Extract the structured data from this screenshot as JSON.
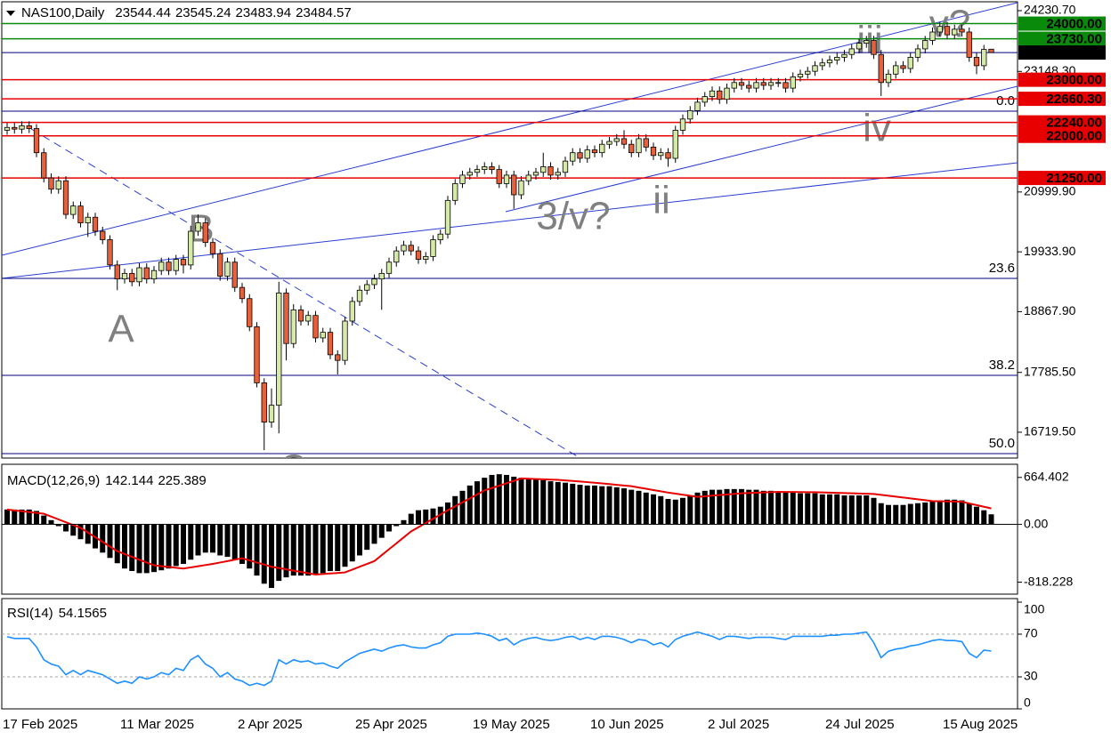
{
  "chart_data": [
    {
      "type": "candlestick",
      "symbol": "NAS100,Daily",
      "categories": [
        "17 Feb 2025",
        null,
        null,
        null,
        null,
        null,
        null,
        null,
        null,
        null,
        null,
        null,
        null,
        null,
        null,
        null,
        "11 Mar 2025",
        null,
        null,
        null,
        null,
        null,
        null,
        null,
        null,
        null,
        null,
        null,
        null,
        null,
        null,
        null,
        "2 Apr 2025",
        null,
        null,
        null,
        null,
        null,
        null,
        null,
        null,
        null,
        null,
        null,
        null,
        null,
        null,
        null,
        "25 Apr 2025",
        null,
        null,
        null,
        null,
        null,
        null,
        null,
        null,
        null,
        null,
        null,
        null,
        null,
        null,
        null,
        "19 May 2025",
        null,
        null,
        null,
        null,
        null,
        null,
        null,
        null,
        null,
        null,
        null,
        null,
        null,
        null,
        null,
        "10 Jun 2025",
        null,
        null,
        null,
        null,
        null,
        null,
        null,
        null,
        null,
        null,
        null,
        null,
        null,
        null,
        null,
        "2 Jul 2025",
        null,
        null,
        null,
        null,
        null,
        null,
        null,
        null,
        null,
        null,
        null,
        null,
        null,
        null,
        null,
        "24 Jul 2025",
        null,
        null,
        null,
        null,
        null,
        null,
        null,
        null,
        null,
        null,
        null,
        null,
        null,
        null,
        null,
        "15 Aug 2025",
        null,
        null,
        null,
        null,
        null,
        null
      ],
      "open": [
        22100,
        22150,
        22120,
        22180,
        22130,
        21700,
        21250,
        21050,
        21200,
        20600,
        20750,
        20450,
        20550,
        20300,
        20150,
        19700,
        19450,
        19550,
        19400,
        19650,
        19450,
        19600,
        19750,
        19600,
        19800,
        19700,
        20300,
        20450,
        20100,
        19900,
        19500,
        19750,
        19300,
        19100,
        18600,
        17600,
        16900,
        17200,
        19200,
        18300,
        18900,
        18700,
        18800,
        18400,
        18500,
        18100,
        18000,
        18700,
        19050,
        19250,
        19350,
        19450,
        19550,
        19750,
        19950,
        20050,
        19950,
        19800,
        19850,
        20150,
        20250,
        20850,
        21150,
        21300,
        21350,
        21400,
        21450,
        21400,
        21150,
        21300,
        20950,
        21200,
        21300,
        21350,
        21450,
        21300,
        21350,
        21550,
        21700,
        21600,
        21750,
        21700,
        21850,
        21900,
        21950,
        21850,
        21700,
        21950,
        21800,
        21650,
        21700,
        21600,
        22100,
        22300,
        22450,
        22600,
        22700,
        22800,
        22650,
        22850,
        22950,
        22900,
        22850,
        22950,
        22900,
        22950,
        22950,
        22850,
        23050,
        23100,
        23150,
        23250,
        23300,
        23350,
        23400,
        23450,
        23550,
        23650,
        23700,
        23450,
        22950,
        23100,
        23250,
        23200,
        23400,
        23550,
        23700,
        23850,
        23950,
        23800,
        23900,
        23850,
        23400,
        23250,
        23544.44
      ],
      "high": [
        22230,
        22230,
        22260,
        22260,
        22210,
        21780,
        21330,
        21280,
        21280,
        20830,
        20830,
        20630,
        20630,
        20380,
        20230,
        19780,
        19630,
        19630,
        19730,
        19730,
        19680,
        19830,
        19830,
        19880,
        19880,
        20400,
        20600,
        20530,
        20180,
        19980,
        19830,
        19830,
        19380,
        19180,
        18680,
        17680,
        17500,
        19400,
        19280,
        19000,
        18980,
        18880,
        18880,
        18580,
        18580,
        18180,
        18780,
        19130,
        19330,
        19430,
        19530,
        19630,
        19830,
        20030,
        20130,
        20130,
        20030,
        19930,
        20230,
        20330,
        20930,
        21230,
        21380,
        21430,
        21480,
        21530,
        21530,
        21480,
        21380,
        21380,
        21280,
        21380,
        21430,
        21700,
        21530,
        21430,
        21630,
        21780,
        21780,
        21830,
        21830,
        21930,
        21980,
        22030,
        22100,
        21930,
        22030,
        22030,
        21880,
        21780,
        21780,
        22180,
        22380,
        22530,
        22680,
        22780,
        22880,
        22880,
        22930,
        23030,
        23030,
        22980,
        23030,
        23030,
        23030,
        23030,
        23030,
        23130,
        23180,
        23230,
        23330,
        23380,
        23430,
        23480,
        23530,
        23630,
        23730,
        23780,
        23780,
        23530,
        23180,
        23330,
        23330,
        23480,
        23630,
        23780,
        23930,
        24030,
        24030,
        23980,
        23980,
        23930,
        23480,
        23620,
        23545.24
      ],
      "low": [
        22020,
        22040,
        22040,
        22050,
        21620,
        21170,
        20970,
        20970,
        20520,
        20520,
        20370,
        20200,
        20220,
        20070,
        19620,
        19250,
        19370,
        19320,
        19320,
        19370,
        19370,
        19520,
        19520,
        19520,
        19550,
        19620,
        20220,
        20020,
        19820,
        19420,
        19420,
        19220,
        19020,
        18520,
        17520,
        16400,
        16800,
        16700,
        18000,
        18220,
        18620,
        18620,
        18320,
        18320,
        18020,
        17750,
        17920,
        18620,
        18970,
        19170,
        19270,
        18900,
        19470,
        19670,
        19870,
        19870,
        19720,
        19720,
        19770,
        20070,
        20170,
        20770,
        21070,
        21220,
        21270,
        21320,
        21320,
        21070,
        21070,
        20700,
        20870,
        21120,
        21220,
        21270,
        21220,
        21220,
        21270,
        21470,
        21520,
        21520,
        21620,
        21620,
        21770,
        21820,
        21770,
        21620,
        21620,
        21720,
        21570,
        21570,
        21450,
        21520,
        22020,
        22220,
        22370,
        22520,
        22620,
        22570,
        22570,
        22770,
        22820,
        22770,
        22770,
        22820,
        22820,
        22870,
        22770,
        22770,
        22970,
        23020,
        23070,
        23170,
        23220,
        23270,
        23320,
        23370,
        23470,
        23570,
        23370,
        22710,
        22870,
        23020,
        23120,
        23120,
        23320,
        23470,
        23620,
        23770,
        23720,
        23720,
        23770,
        23320,
        23100,
        23170,
        23483.94
      ],
      "close": [
        22150,
        22120,
        22180,
        22130,
        21700,
        21250,
        21050,
        21200,
        20600,
        20750,
        20450,
        20550,
        20300,
        20150,
        19700,
        19450,
        19550,
        19400,
        19650,
        19450,
        19600,
        19750,
        19600,
        19800,
        19700,
        20300,
        20450,
        20100,
        19900,
        19500,
        19750,
        19300,
        19100,
        18600,
        17600,
        16900,
        17200,
        19200,
        18300,
        18900,
        18700,
        18800,
        18400,
        18500,
        18100,
        18000,
        18700,
        19050,
        19250,
        19350,
        19450,
        19550,
        19750,
        19950,
        20050,
        19950,
        19800,
        19850,
        20150,
        20250,
        20850,
        21150,
        21300,
        21350,
        21400,
        21450,
        21400,
        21150,
        21300,
        20950,
        21200,
        21300,
        21350,
        21450,
        21300,
        21350,
        21550,
        21700,
        21600,
        21750,
        21700,
        21850,
        21900,
        21950,
        21850,
        21700,
        21950,
        21800,
        21650,
        21700,
        21600,
        22100,
        22300,
        22450,
        22600,
        22700,
        22800,
        22650,
        22850,
        22950,
        22900,
        22850,
        22950,
        22900,
        22950,
        22950,
        22850,
        23050,
        23100,
        23150,
        23250,
        23300,
        23350,
        23400,
        23450,
        23550,
        23650,
        23700,
        23450,
        22950,
        23100,
        23250,
        23200,
        23400,
        23550,
        23700,
        23850,
        23950,
        23800,
        23900,
        23850,
        23400,
        23250,
        23540,
        23484.57
      ],
      "up_color": "#d6eaa8",
      "down_color": "#e8603a",
      "ylim": [
        16307,
        24373
      ],
      "yticks": [
        {
          "value": 24230.7,
          "label": "24230.70"
        },
        {
          "value": 23148.3,
          "label": "23148.30"
        },
        {
          "value": 20999.9,
          "label": "20999.90"
        },
        {
          "value": 19933.9,
          "label": "19933.90"
        },
        {
          "value": 18867.9,
          "label": "18867.90"
        },
        {
          "value": 17785.5,
          "label": "17785.50"
        },
        {
          "value": 16719.5,
          "label": "16719.50"
        }
      ],
      "levels": [
        {
          "value": 24000,
          "label": "24000.00",
          "color": "#0a8a0a"
        },
        {
          "value": 23730,
          "label": "23730.00",
          "color": "#0a8a0a"
        },
        {
          "value": 23000,
          "label": "23000.00",
          "color": "#e80000"
        },
        {
          "value": 22660.3,
          "label": "22660.30",
          "color": "#e80000"
        },
        {
          "value": 22240,
          "label": "22240.00",
          "color": "#e80000"
        },
        {
          "value": 22000,
          "label": "22000.00",
          "color": "#e80000"
        },
        {
          "value": 21250,
          "label": "21250.00",
          "color": "#e80000"
        }
      ],
      "fib_levels": [
        {
          "value": 22440,
          "label": "0.0"
        },
        {
          "value": 19460,
          "label": "23.6"
        },
        {
          "value": 17733,
          "label": "38.2"
        },
        {
          "value": 16339,
          "label": "50.0"
        }
      ],
      "annotations": [
        "A",
        "B",
        "C",
        "3/v?",
        "ii",
        "iii",
        "iv",
        "v?"
      ]
    },
    {
      "type": "bar",
      "title": "MACD(12,26,9)",
      "values": [
        210,
        210,
        210,
        210,
        190,
        125,
        60,
        -25,
        -100,
        -160,
        -210,
        -275,
        -340,
        -400,
        -475,
        -550,
        -625,
        -660,
        -690,
        -690,
        -675,
        -650,
        -625,
        -590,
        -560,
        -500,
        -440,
        -400,
        -400,
        -440,
        -460,
        -500,
        -560,
        -625,
        -725,
        -840,
        -900,
        -800,
        -750,
        -725,
        -725,
        -725,
        -700,
        -690,
        -660,
        -660,
        -600,
        -525,
        -440,
        -360,
        -275,
        -190,
        -100,
        -25,
        60,
        150,
        200,
        210,
        225,
        250,
        310,
        400,
        475,
        550,
        610,
        660,
        700,
        710,
        700,
        675,
        660,
        650,
        640,
        625,
        610,
        600,
        590,
        575,
        560,
        550,
        550,
        540,
        540,
        525,
        510,
        490,
        475,
        450,
        425,
        400,
        360,
        350,
        375,
        410,
        450,
        475,
        490,
        490,
        500,
        500,
        500,
        490,
        490,
        475,
        475,
        460,
        450,
        450,
        440,
        440,
        440,
        425,
        425,
        425,
        410,
        410,
        410,
        410,
        375,
        300,
        275,
        275,
        275,
        290,
        300,
        310,
        325,
        340,
        350,
        350,
        340,
        300,
        250,
        200,
        142.144
      ],
      "signal": [
        210,
        198,
        186,
        174,
        162,
        150,
        110,
        70,
        30,
        -10,
        -50,
        -116,
        -182,
        -248,
        -314,
        -380,
        -420,
        -460,
        -500,
        -540,
        -580,
        -591,
        -602,
        -614,
        -625,
        -609,
        -592,
        -576,
        -560,
        -540,
        -520,
        -500,
        -480,
        -510,
        -540,
        -570,
        -600,
        -618,
        -637,
        -655,
        -673,
        -692,
        -710,
        -702,
        -695,
        -688,
        -680,
        -640,
        -600,
        -560,
        -520,
        -436,
        -352,
        -268,
        -184,
        -100,
        -40,
        20,
        80,
        140,
        200,
        256,
        312,
        368,
        424,
        480,
        514,
        548,
        582,
        616,
        650,
        646,
        642,
        638,
        634,
        630,
        622,
        614,
        606,
        598,
        590,
        580,
        570,
        560,
        550,
        540,
        522,
        504,
        486,
        468,
        450,
        435,
        420,
        405,
        390,
        398,
        407,
        415,
        423,
        432,
        440,
        444,
        448,
        452,
        456,
        460,
        459,
        458,
        457,
        456,
        455,
        452,
        449,
        446,
        443,
        440,
        437,
        433,
        430,
        418,
        405,
        393,
        380,
        368,
        355,
        343,
        330,
        328,
        325,
        323,
        320,
        296,
        273,
        249,
        225.389
      ],
      "color": "#000000",
      "signal_color": "#e80000",
      "ylim": [
        -975,
        838
      ],
      "yticks": [
        664.402,
        {
          "value": 0,
          "label": "0.00"
        },
        -818.228
      ]
    },
    {
      "type": "line",
      "title": "RSI(14)",
      "values": [
        67.6,
        66,
        66,
        66,
        58,
        46,
        42,
        40,
        32,
        36,
        32,
        36,
        34,
        32,
        28,
        24,
        26,
        24,
        30,
        28,
        30,
        34,
        32,
        38,
        36,
        46,
        50,
        42,
        38,
        30,
        34,
        28,
        26,
        22,
        24,
        22,
        26,
        46,
        42,
        46,
        44,
        45,
        42,
        43,
        40,
        38,
        44,
        48,
        52,
        54,
        56,
        54,
        57,
        59,
        60,
        58,
        57,
        57,
        60,
        62,
        68,
        70,
        70,
        70,
        71,
        70,
        68,
        64,
        66,
        60,
        64,
        66,
        67,
        65,
        64,
        65,
        67,
        68,
        65,
        67,
        65,
        68,
        68,
        67,
        65,
        62,
        65,
        64,
        60,
        62,
        58,
        65,
        68,
        70,
        72,
        70,
        68,
        65,
        68,
        68,
        67,
        66,
        67,
        67,
        67,
        66,
        65,
        68,
        68,
        68,
        68,
        68,
        69,
        69,
        70,
        70,
        71,
        72,
        62,
        48,
        54,
        56,
        57,
        59,
        60,
        62,
        64,
        65,
        64,
        64,
        63,
        52,
        48,
        55,
        54.1565
      ],
      "color": "#1e90ff",
      "ylim": [
        0,
        100
      ],
      "yticks": [
        100,
        70,
        30,
        0
      ],
      "levels": [
        30,
        70
      ]
    }
  ]
}
